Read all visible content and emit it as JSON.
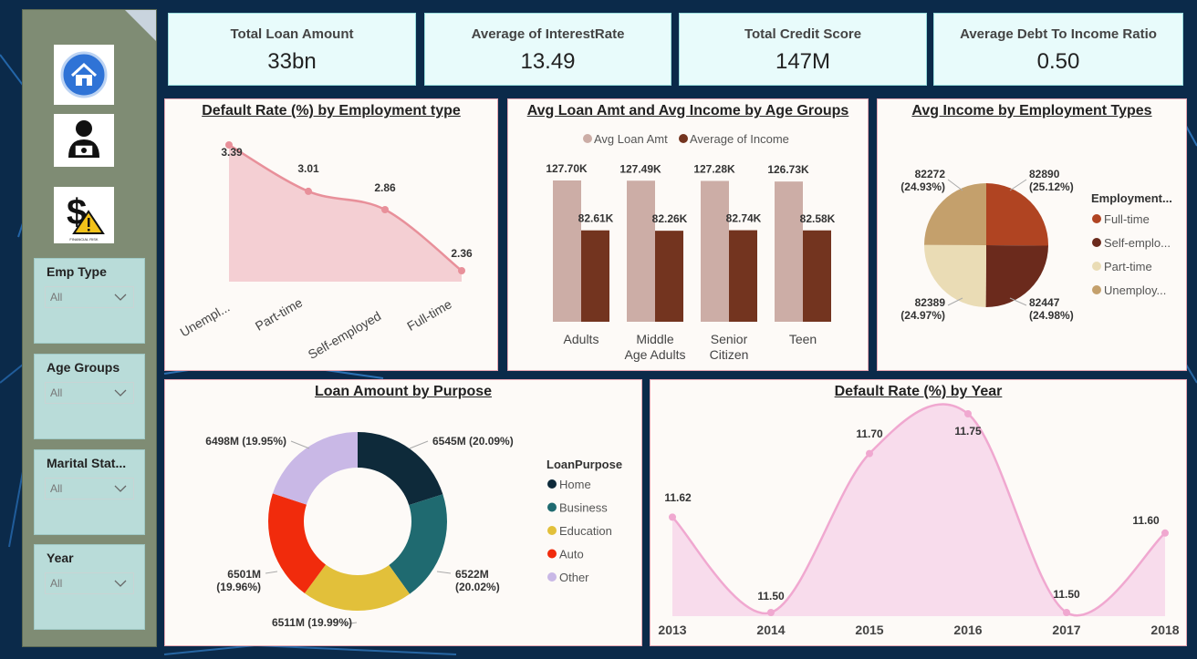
{
  "kpis": [
    {
      "label": "Total Loan Amount",
      "value": "33bn"
    },
    {
      "label": "Average of InterestRate",
      "value": "13.49"
    },
    {
      "label": "Total Credit Score",
      "value": "147M"
    },
    {
      "label": "Average Debt To Income Ratio",
      "value": "0.50"
    }
  ],
  "nav": {
    "home_icon": "home-icon",
    "borrower_icon": "borrower-icon",
    "financial_risk_icon": "financial-risk-icon",
    "financial_risk_caption": "FINANCIAL RISK"
  },
  "slicers": [
    {
      "title": "Emp Type",
      "value": "All"
    },
    {
      "title": "Age Groups",
      "value": "All"
    },
    {
      "title": "Marital Stat...",
      "value": "All"
    },
    {
      "title": "Year",
      "value": "All"
    }
  ],
  "colors": {
    "accent_pink": "#e8909a",
    "loan_bar": "#ccada6",
    "income_bar": "#73341f",
    "pie_full": "#b04422",
    "pie_self": "#6b2a1c",
    "pie_part": "#eadcb5",
    "pie_unemp": "#c4a06c",
    "donut_home": "#0e2a3a",
    "donut_business": "#1f6a70",
    "donut_education": "#e2c03a",
    "donut_auto": "#f12b0c",
    "donut_other": "#c9b8e6",
    "year_line": "#f0a8d0"
  },
  "chart_data": [
    {
      "type": "area",
      "title": "Default Rate (%) by Employment type",
      "categories": [
        "Unempl...",
        "Part-time",
        "Self-employed",
        "Full-time"
      ],
      "values": [
        3.39,
        3.01,
        2.86,
        2.36
      ],
      "labels": [
        "3.39",
        "3.01",
        "2.86",
        "2.36"
      ]
    },
    {
      "type": "bar",
      "title": "Avg Loan Amt and Avg Income by Age Groups",
      "categories": [
        "Adults",
        "Middle Age Adults",
        "Senior Citizen",
        "Teen"
      ],
      "category_lines": [
        [
          "Adults"
        ],
        [
          "Middle",
          "Age Adults"
        ],
        [
          "Senior",
          "Citizen"
        ],
        [
          "Teen"
        ]
      ],
      "series": [
        {
          "name": "Avg Loan Amt",
          "values": [
            127.7,
            127.49,
            127.28,
            126.73
          ],
          "labels": [
            "127.70K",
            "127.49K",
            "127.28K",
            "126.73K"
          ]
        },
        {
          "name": "Average of Income",
          "values": [
            82.61,
            82.26,
            82.74,
            82.58
          ],
          "labels": [
            "82.61K",
            "82.26K",
            "82.74K",
            "82.58K"
          ]
        }
      ]
    },
    {
      "type": "pie",
      "title": "Avg Income by Employment Types",
      "legend_title": "Employment...",
      "slices": [
        {
          "name": "Full-time",
          "value": 82890,
          "value_label": "82890",
          "pct_label": "(25.12%)"
        },
        {
          "name": "Self-emplo...",
          "value": 82447,
          "value_label": "82447",
          "pct_label": "(24.98%)"
        },
        {
          "name": "Part-time",
          "value": 82389,
          "value_label": "82389",
          "pct_label": "(24.97%)"
        },
        {
          "name": "Unemploy...",
          "value": 82272,
          "value_label": "82272",
          "pct_label": "(24.93%)"
        }
      ]
    },
    {
      "type": "pie",
      "title": "Loan Amount by Purpose",
      "legend_title": "LoanPurpose",
      "slices": [
        {
          "name": "Home",
          "value": 6545,
          "value_label": "6545M",
          "pct_label": "(20.09%)"
        },
        {
          "name": "Business",
          "value": 6522,
          "value_label": "6522M",
          "pct_label": "(20.02%)"
        },
        {
          "name": "Education",
          "value": 6511,
          "value_label": "6511M",
          "pct_label": "(19.99%)"
        },
        {
          "name": "Auto",
          "value": 6501,
          "value_label": "6501M",
          "pct_label": "(19.96%)"
        },
        {
          "name": "Other",
          "value": 6498,
          "value_label": "6498M",
          "pct_label": "(19.95%)"
        }
      ]
    },
    {
      "type": "area",
      "title": "Default Rate (%) by Year",
      "categories": [
        "2013",
        "2014",
        "2015",
        "2016",
        "2017",
        "2018"
      ],
      "values": [
        11.62,
        11.5,
        11.7,
        11.75,
        11.5,
        11.6
      ],
      "labels": [
        "11.62",
        "11.50",
        "11.70",
        "11.75",
        "11.50",
        "11.60"
      ]
    }
  ]
}
